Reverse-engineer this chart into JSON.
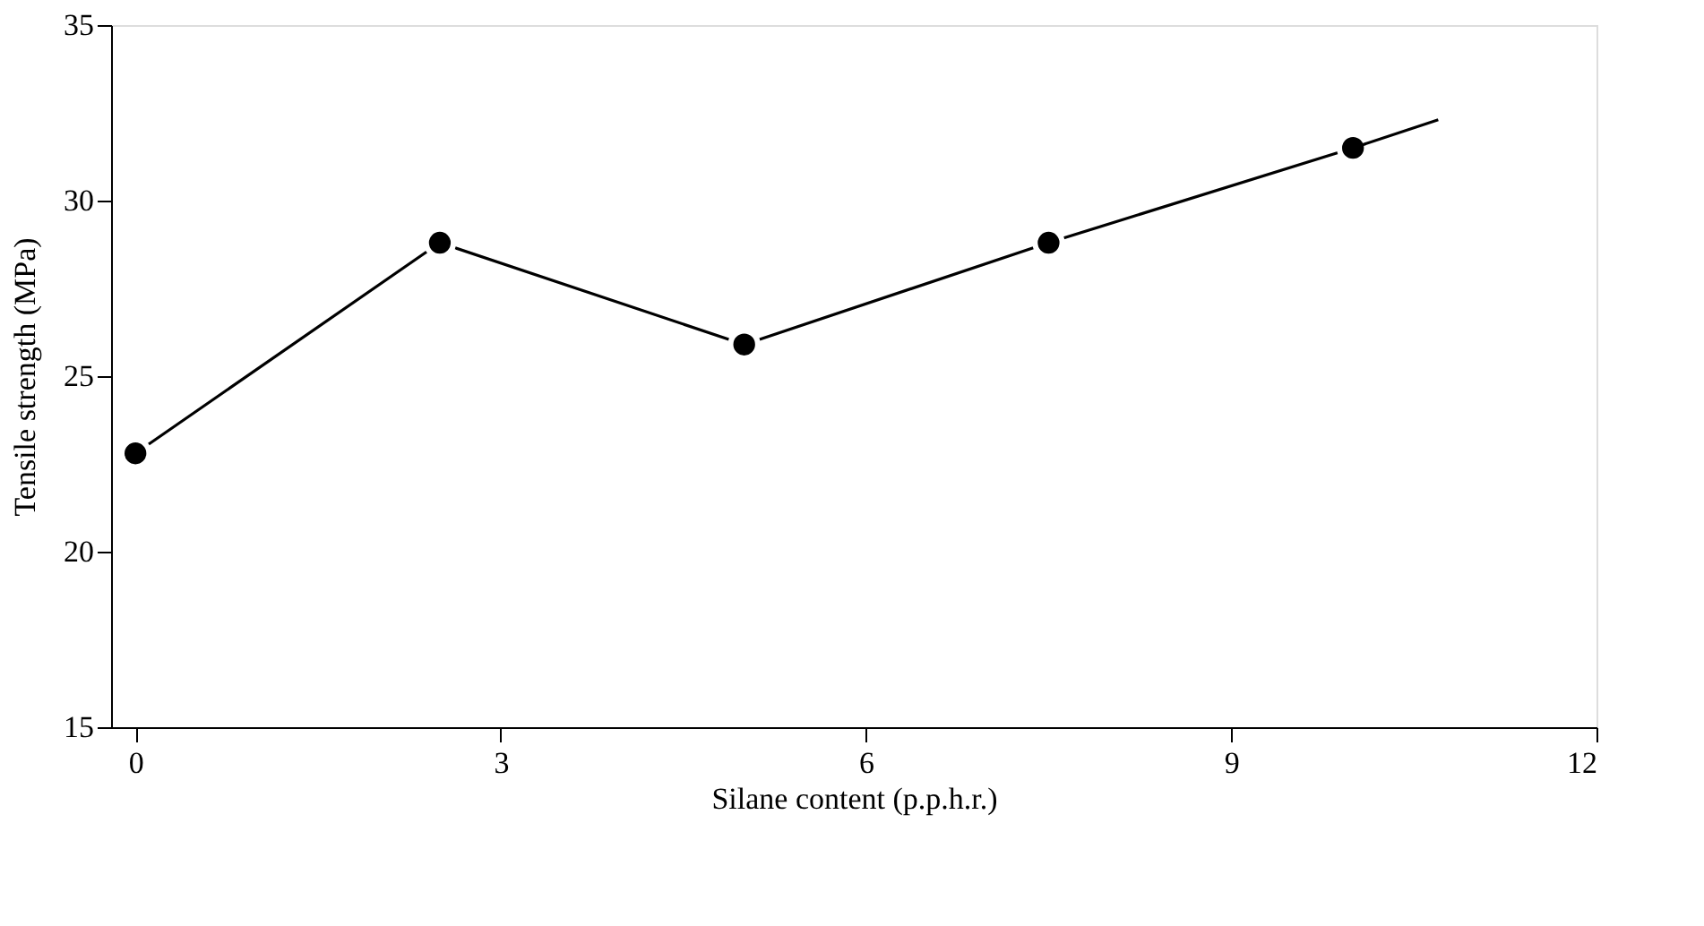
{
  "chart_data": {
    "type": "line",
    "xlabel": "Silane content (p.p.h.r.)",
    "ylabel": "Tensile strength (MPa)",
    "series": [
      {
        "color": "#000000",
        "x": [
          0,
          2.5,
          5,
          7.5,
          10
        ],
        "values": [
          22.8,
          28.8,
          25.9,
          28.8,
          31.5
        ],
        "marker": "circle"
      },
      {
        "color": "#000000",
        "x": [
          10,
          10.7
        ],
        "values": [
          31.5,
          32.3
        ],
        "marker": "none"
      }
    ],
    "xlim": [
      -0.2,
      12
    ],
    "xticks": [
      0,
      3,
      6,
      9,
      12
    ],
    "ylim": [
      15,
      35
    ],
    "yticks": [
      15,
      20,
      25,
      30,
      35
    ],
    "grid": false,
    "line_style": "solid"
  }
}
